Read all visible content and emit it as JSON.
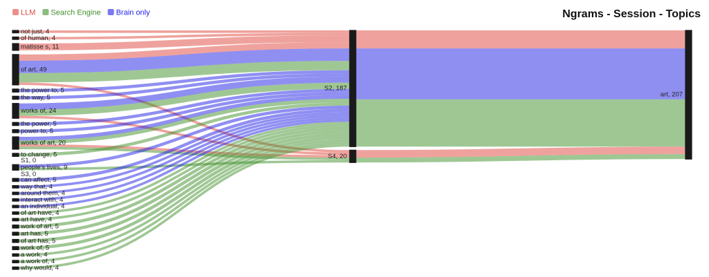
{
  "chart_data": {
    "type": "sankey",
    "title": "Ngrams - Session - Topics",
    "series": [
      {
        "name": "LLM",
        "color": "#e0453c"
      },
      {
        "name": "Search Engine",
        "color": "#3f8f2a"
      },
      {
        "name": "Brain only",
        "color": "#1f1fe6"
      }
    ],
    "columns": [
      [
        {
          "label": "not just, 4",
          "value": 4
        },
        {
          "label": "of human, 4",
          "value": 4
        },
        {
          "label": "matisse s, 11",
          "value": 11
        },
        {
          "label": "of art, 49",
          "value": 49
        },
        {
          "label": "the power to, 5",
          "value": 5
        },
        {
          "label": "the way, 5",
          "value": 5
        },
        {
          "label": "works of, 24",
          "value": 24
        },
        {
          "label": "the power, 5",
          "value": 5
        },
        {
          "label": "power to, 5",
          "value": 5
        },
        {
          "label": "works of art, 20",
          "value": 20
        },
        {
          "label": "to change, 5",
          "value": 5
        },
        {
          "label": "S1, 0",
          "value": 0
        },
        {
          "label": "people's lives, 9",
          "value": 9
        },
        {
          "label": "S3, 0",
          "value": 0
        },
        {
          "label": "can affect, 5",
          "value": 5
        },
        {
          "label": "way that, 4",
          "value": 4
        },
        {
          "label": "around them, 4",
          "value": 4
        },
        {
          "label": "interact with, 4",
          "value": 4
        },
        {
          "label": "an individual, 4",
          "value": 4
        },
        {
          "label": "of art have, 4",
          "value": 4
        },
        {
          "label": "art have, 4",
          "value": 4
        },
        {
          "label": "work of art, 5",
          "value": 5
        },
        {
          "label": "art has, 5",
          "value": 5
        },
        {
          "label": "of art has, 5",
          "value": 5
        },
        {
          "label": "work of, 5",
          "value": 5
        },
        {
          "label": "a work, 4",
          "value": 4
        },
        {
          "label": "a work of, 4",
          "value": 4
        },
        {
          "label": "why would, 4",
          "value": 4
        }
      ],
      [
        {
          "label": "S2, 187",
          "value": 187
        },
        {
          "label": "S4, 20",
          "value": 20
        }
      ],
      [
        {
          "label": "art, 207",
          "value": 207
        }
      ]
    ],
    "links": [
      {
        "source": "not just, 4",
        "target": "S2, 187",
        "value": 4,
        "group": "LLM"
      },
      {
        "source": "of human, 4",
        "target": "S2, 187",
        "value": 4,
        "group": "LLM"
      },
      {
        "source": "matisse s, 11",
        "target": "S2, 187",
        "value": 11,
        "group": "LLM"
      },
      {
        "source": "of art, 49",
        "target": "S2, 187",
        "value": 10,
        "group": "LLM"
      },
      {
        "source": "of art, 49",
        "target": "S2, 187",
        "value": 20,
        "group": "Brain only"
      },
      {
        "source": "of art, 49",
        "target": "S2, 187",
        "value": 15,
        "group": "Search Engine"
      },
      {
        "source": "of art, 49",
        "target": "S4, 20",
        "value": 4,
        "group": "LLM"
      },
      {
        "source": "the power to, 5",
        "target": "S2, 187",
        "value": 5,
        "group": "Brain only"
      },
      {
        "source": "the way, 5",
        "target": "S2, 187",
        "value": 5,
        "group": "Brain only"
      },
      {
        "source": "works of, 24",
        "target": "S2, 187",
        "value": 10,
        "group": "Brain only"
      },
      {
        "source": "works of, 24",
        "target": "S2, 187",
        "value": 10,
        "group": "Search Engine"
      },
      {
        "source": "works of, 24",
        "target": "S4, 20",
        "value": 4,
        "group": "LLM"
      },
      {
        "source": "the power, 5",
        "target": "S2, 187",
        "value": 5,
        "group": "Brain only"
      },
      {
        "source": "power to, 5",
        "target": "S2, 187",
        "value": 5,
        "group": "Brain only"
      },
      {
        "source": "works of art, 20",
        "target": "S2, 187",
        "value": 6,
        "group": "Brain only"
      },
      {
        "source": "works of art, 20",
        "target": "S2, 187",
        "value": 6,
        "group": "Search Engine"
      },
      {
        "source": "works of art, 20",
        "target": "S4, 20",
        "value": 4,
        "group": "LLM"
      },
      {
        "source": "works of art, 20",
        "target": "S4, 20",
        "value": 4,
        "group": "Search Engine"
      },
      {
        "source": "to change, 5",
        "target": "S2, 187",
        "value": 5,
        "group": "Search Engine"
      },
      {
        "source": "people's lives, 9",
        "target": "S2, 187",
        "value": 5,
        "group": "Brain only"
      },
      {
        "source": "people's lives, 9",
        "target": "S4, 20",
        "value": 4,
        "group": "Search Engine"
      },
      {
        "source": "can affect, 5",
        "target": "S2, 187",
        "value": 5,
        "group": "Brain only"
      },
      {
        "source": "way that, 4",
        "target": "S2, 187",
        "value": 4,
        "group": "Brain only"
      },
      {
        "source": "around them, 4",
        "target": "S2, 187",
        "value": 4,
        "group": "Brain only"
      },
      {
        "source": "interact with, 4",
        "target": "S2, 187",
        "value": 4,
        "group": "Brain only"
      },
      {
        "source": "an individual, 4",
        "target": "S2, 187",
        "value": 4,
        "group": "Brain only"
      },
      {
        "source": "of art have, 4",
        "target": "S2, 187",
        "value": 4,
        "group": "Search Engine"
      },
      {
        "source": "art have, 4",
        "target": "S2, 187",
        "value": 4,
        "group": "Search Engine"
      },
      {
        "source": "work of art, 5",
        "target": "S2, 187",
        "value": 5,
        "group": "Search Engine"
      },
      {
        "source": "art has, 5",
        "target": "S2, 187",
        "value": 5,
        "group": "Search Engine"
      },
      {
        "source": "of art has, 5",
        "target": "S2, 187",
        "value": 5,
        "group": "Search Engine"
      },
      {
        "source": "work of, 5",
        "target": "S2, 187",
        "value": 5,
        "group": "Search Engine"
      },
      {
        "source": "a work, 4",
        "target": "S2, 187",
        "value": 4,
        "group": "Search Engine"
      },
      {
        "source": "a work of, 4",
        "target": "S2, 187",
        "value": 4,
        "group": "Search Engine"
      },
      {
        "source": "why would, 4",
        "target": "S2, 187",
        "value": 4,
        "group": "Search Engine"
      },
      {
        "source": "S2, 187",
        "target": "art, 207",
        "value": 29,
        "group": "LLM"
      },
      {
        "source": "S2, 187",
        "target": "art, 207",
        "value": 82,
        "group": "Brain only"
      },
      {
        "source": "S2, 187",
        "target": "art, 207",
        "value": 76,
        "group": "Search Engine"
      },
      {
        "source": "S4, 20",
        "target": "art, 207",
        "value": 12,
        "group": "LLM"
      },
      {
        "source": "S4, 20",
        "target": "art, 207",
        "value": 8,
        "group": "Search Engine"
      }
    ]
  }
}
